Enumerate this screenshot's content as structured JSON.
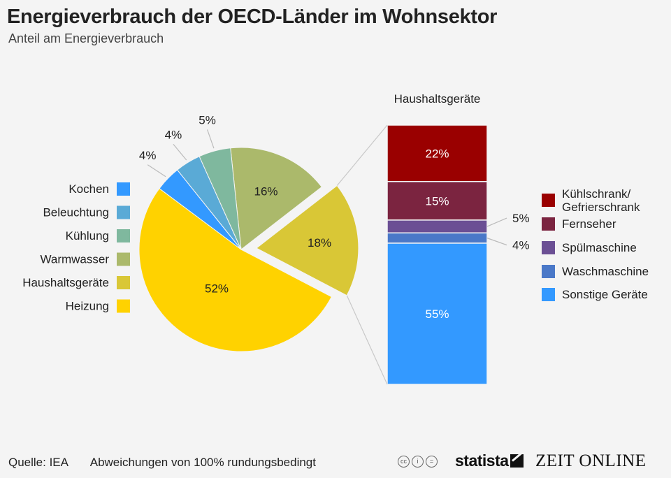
{
  "title": "Energieverbrauch der OECD-Länder im Wohnsektor",
  "subtitle": "Anteil am Energieverbrauch",
  "chart_data": [
    {
      "type": "pie",
      "categories": [
        "Kochen",
        "Beleuchtung",
        "Kühlung",
        "Warmwasser",
        "Haushaltsgeräte",
        "Heizung"
      ],
      "values": [
        4,
        4,
        5,
        16,
        18,
        52
      ],
      "labels": [
        "4%",
        "4%",
        "5%",
        "16%",
        "18%",
        "52%"
      ],
      "colors": [
        "#3399ff",
        "#5aaad6",
        "#7fb89e",
        "#abb96b",
        "#d9c736",
        "#ffd200"
      ],
      "exploded": "Haushaltsgeräte",
      "legend": "left"
    },
    {
      "type": "bar",
      "stacked": true,
      "title": "Haushaltsgeräte",
      "categories": [
        "Kühlschrank/\nGefrierschrank",
        "Fernseher",
        "Spülmaschine",
        "Waschmaschine",
        "Sonstige Geräte"
      ],
      "legend_lines": [
        [
          "Kühlschrank/",
          "Gefrierschrank"
        ],
        [
          "Fernseher"
        ],
        [
          "Spülmaschine"
        ],
        [
          "Waschmaschine"
        ],
        [
          "Sonstige Geräte"
        ]
      ],
      "values": [
        22,
        15,
        5,
        4,
        55
      ],
      "labels": [
        "22%",
        "15%",
        "5%",
        "4%",
        "55%"
      ],
      "colors": [
        "#9a0000",
        "#7b2440",
        "#6b4f94",
        "#4a78c8",
        "#3399ff"
      ],
      "legend": "right"
    }
  ],
  "footer": {
    "source": "Quelle: IEA",
    "note": "Abweichungen von 100% rundungsbedingt",
    "cc_icons": [
      "cc-icon",
      "by-icon",
      "nd-icon"
    ],
    "cc_glyphs": [
      "cc",
      "i",
      "="
    ],
    "statista": "statista",
    "zeit": "ZEIT ONLINE"
  }
}
